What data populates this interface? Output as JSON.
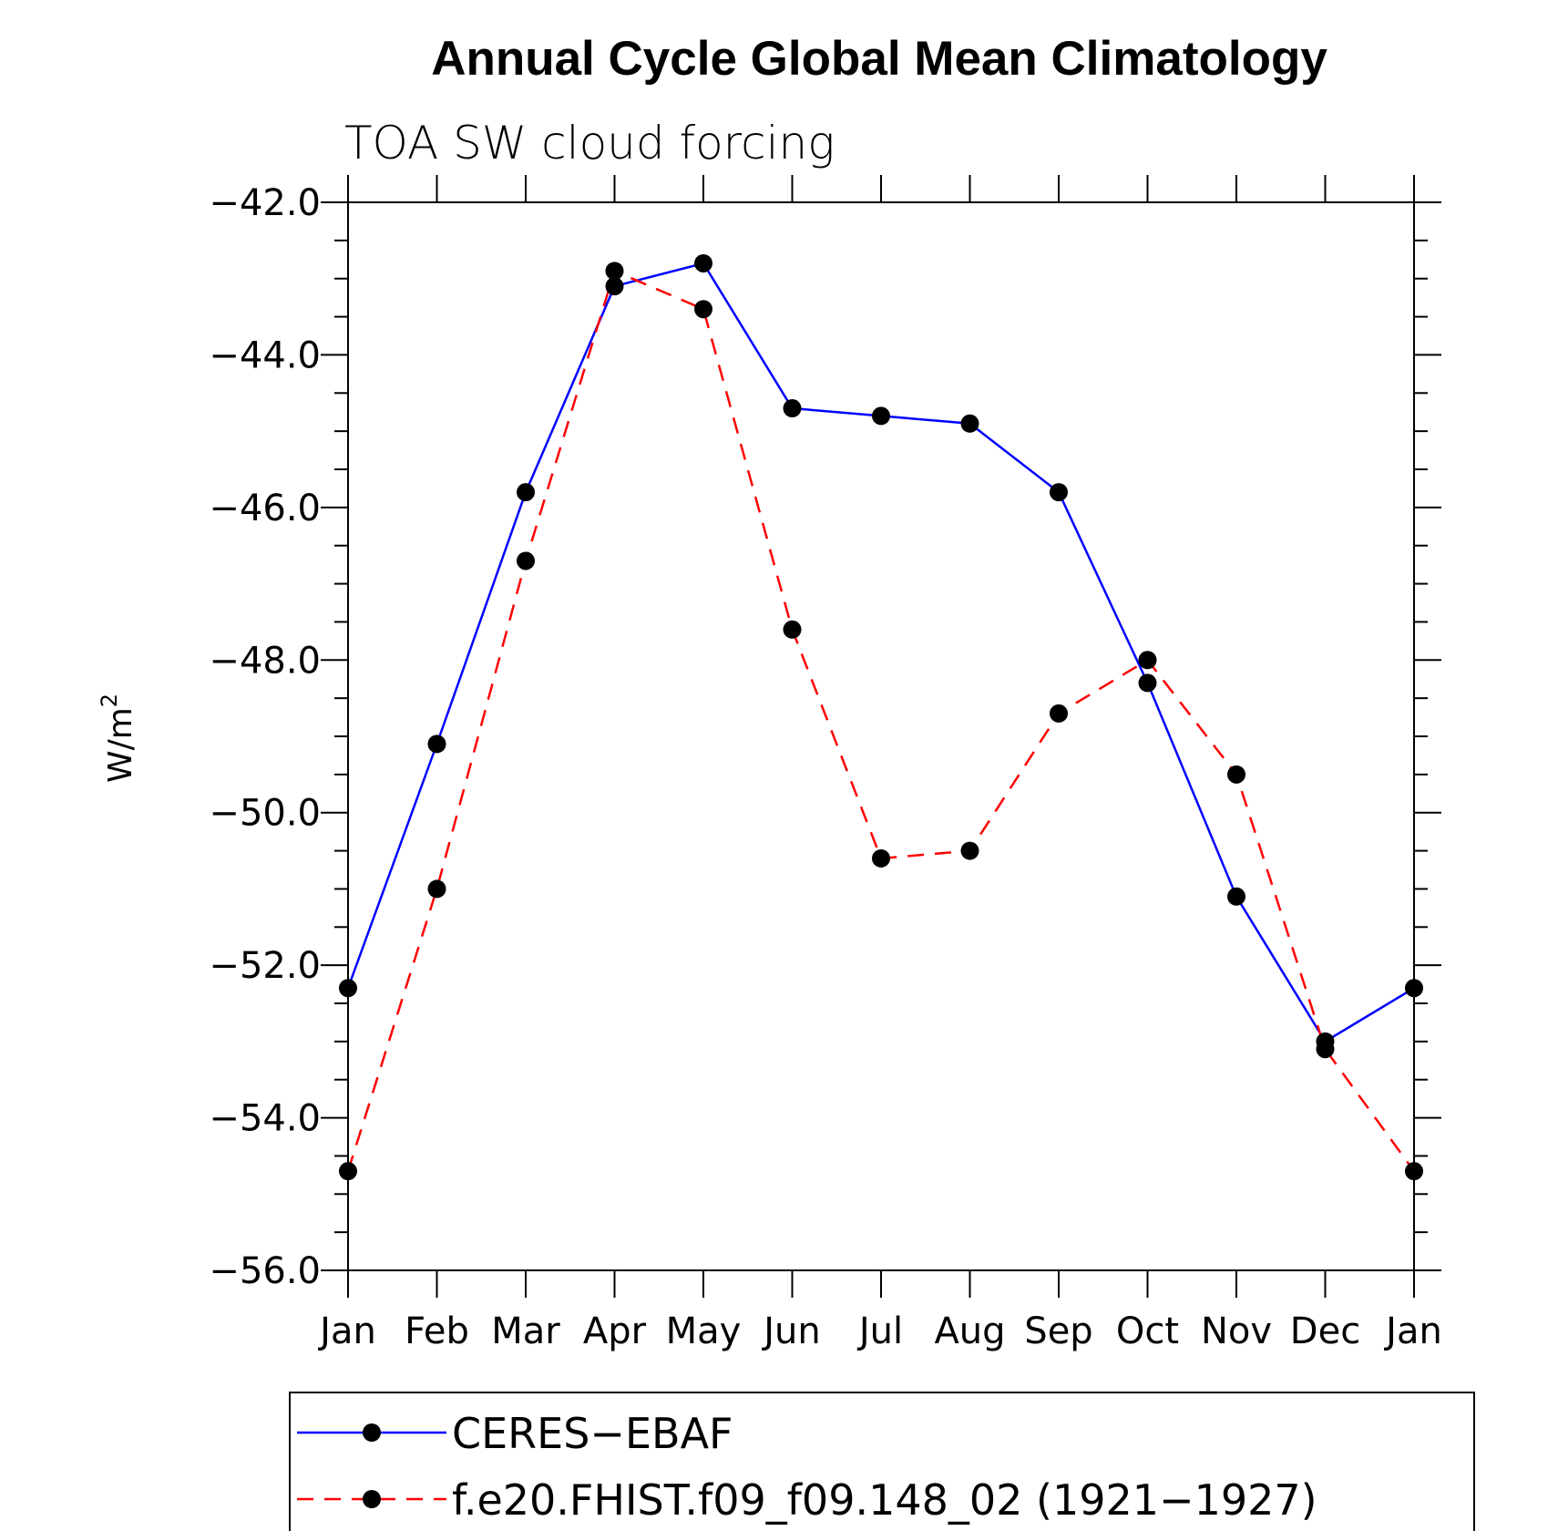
{
  "chart_data": {
    "type": "line",
    "title": "Annual Cycle Global Mean Climatology",
    "subtitle": "TOA SW cloud forcing",
    "ylabel": "W/m",
    "ylabel_sup": "2",
    "xlabel": "",
    "categories": [
      "Jan",
      "Feb",
      "Mar",
      "Apr",
      "May",
      "Jun",
      "Jul",
      "Aug",
      "Sep",
      "Oct",
      "Nov",
      "Dec",
      "Jan"
    ],
    "ylim": [
      -56.0,
      -42.0
    ],
    "yticks": [
      "-56.0",
      "-54.0",
      "-52.0",
      "-50.0",
      "-48.0",
      "-46.0",
      "-44.0",
      "-42.0"
    ],
    "ytick_values": [
      -56,
      -54,
      -52,
      -50,
      -48,
      -46,
      -44,
      -42
    ],
    "grid": false,
    "legend_position": "bottom",
    "series": [
      {
        "name": "CERES-EBAF",
        "color": "#0000ff",
        "dash": "solid",
        "marker": "dot",
        "values": [
          -52.3,
          -49.1,
          -45.8,
          -43.1,
          -42.8,
          -44.7,
          -44.8,
          -44.9,
          -45.8,
          -48.3,
          -51.1,
          -53.0,
          -52.3
        ]
      },
      {
        "name": "f.e20.FHIST.f09_f09.148_02 (1921-1927)",
        "color": "#ff0000",
        "dash": "dashed",
        "marker": "dot",
        "values": [
          -54.7,
          -51.0,
          -46.7,
          -42.9,
          -43.4,
          -47.6,
          -50.6,
          -50.5,
          -48.7,
          -48.0,
          -49.5,
          -53.1,
          -54.7
        ]
      }
    ]
  }
}
